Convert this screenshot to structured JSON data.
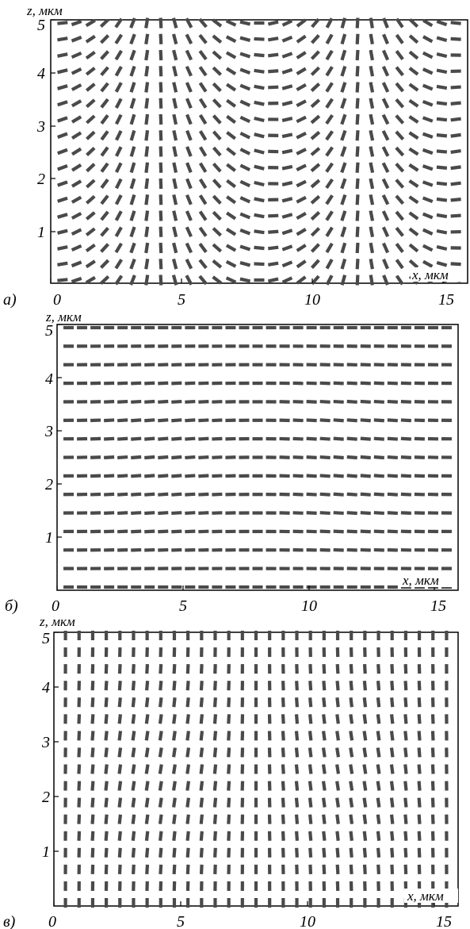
{
  "panels": [
    {
      "id": "a",
      "panel_label": "а)",
      "x_axis_label": "x, мкм",
      "z_axis_label": "z, мкм",
      "x_ticks": [
        "0",
        "5",
        "10",
        "15"
      ],
      "z_ticks": [
        "1",
        "2",
        "3",
        "4",
        "5"
      ],
      "field": "twist"
    },
    {
      "id": "b",
      "panel_label": "б)",
      "x_axis_label": "x, мкм",
      "z_axis_label": "z, мкм",
      "x_ticks": [
        "0",
        "5",
        "10",
        "15"
      ],
      "z_ticks": [
        "1",
        "2",
        "3",
        "4",
        "5"
      ],
      "field": "planar"
    },
    {
      "id": "c",
      "panel_label": "в)",
      "x_axis_label": "x, мкм",
      "z_axis_label": "z, мкм",
      "x_ticks": [
        "0",
        "5",
        "10",
        "15"
      ],
      "z_ticks": [
        "1",
        "2",
        "3",
        "4",
        "5"
      ],
      "field": "homeotropic"
    }
  ],
  "colors": {
    "director": "#4a4a4a",
    "axis": "#000000"
  }
}
